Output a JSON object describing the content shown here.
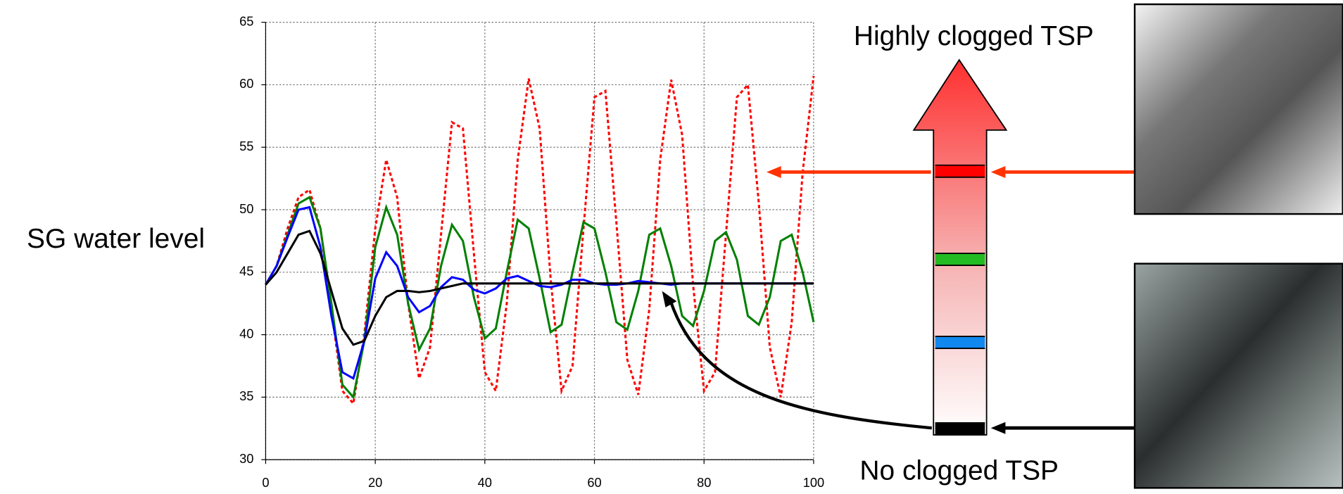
{
  "chart_data": {
    "type": "line",
    "ylabel": "SG water level",
    "annotations": [
      "Highly clogged TSP",
      "No clogged TSP"
    ],
    "x": [
      0,
      2,
      4,
      6,
      8,
      10,
      12,
      14,
      16,
      18,
      20,
      22,
      24,
      26,
      28,
      30,
      32,
      34,
      36,
      38,
      40,
      42,
      44,
      46,
      48,
      50,
      52,
      54,
      56,
      58,
      60,
      62,
      64,
      66,
      68,
      70,
      72,
      74,
      76,
      78,
      80,
      82,
      84,
      86,
      88,
      90,
      92,
      94,
      96,
      98,
      100
    ],
    "series": [
      {
        "color": "#ff0000",
        "dash": true,
        "values": [
          44,
          45.5,
          48.5,
          51,
          51.6,
          48.5,
          42,
          35.5,
          34.5,
          40,
          48.5,
          54,
          51,
          42.5,
          36.5,
          39,
          48,
          57,
          56.5,
          46.5,
          37,
          35.5,
          42.5,
          54,
          60.5,
          56.5,
          44.5,
          35.5,
          37.5,
          48.5,
          59,
          59.5,
          49,
          38,
          35.2,
          42,
          54,
          60.4,
          56,
          44,
          35.5,
          37,
          48,
          59,
          60,
          50.5,
          39,
          35,
          41,
          53,
          60.7
        ]
      },
      {
        "color": "#008000",
        "dash": false,
        "values": [
          44,
          45.5,
          48,
          50.5,
          51,
          48.5,
          42.5,
          36,
          35,
          39.5,
          47,
          50.2,
          48,
          42.5,
          38.8,
          40.5,
          45.5,
          48.8,
          47.5,
          43,
          39.7,
          40.5,
          45,
          49.2,
          48.5,
          44.5,
          40.2,
          40.8,
          45,
          49,
          48.5,
          45,
          41,
          40.4,
          43.5,
          48,
          48.5,
          45.5,
          41.5,
          40.7,
          43.5,
          47.5,
          48.2,
          46,
          41.5,
          40.8,
          43,
          47.5,
          48,
          45,
          41
        ]
      },
      {
        "color": "#0000ff",
        "dash": false,
        "values": [
          44,
          45.5,
          47.8,
          50,
          50.2,
          47,
          41.5,
          37,
          36.5,
          39.5,
          44.5,
          46.6,
          45.5,
          43,
          41.8,
          42.3,
          43.8,
          44.6,
          44.4,
          43.6,
          43.3,
          43.7,
          44.5,
          44.7,
          44.3,
          43.9,
          43.8,
          44,
          44.4,
          44.4,
          44.1,
          44,
          44,
          44.1,
          44.3,
          44.2,
          44.1,
          44,
          44.1,
          44.1,
          44.1,
          44.1,
          44.1,
          44.1,
          44.1,
          44.1,
          44.1,
          44.1,
          44.1,
          44.1,
          44.1
        ]
      },
      {
        "color": "#000000",
        "dash": false,
        "values": [
          44,
          45,
          46.5,
          48,
          48.3,
          46.5,
          43.5,
          40.5,
          39.2,
          39.5,
          41.5,
          43,
          43.5,
          43.5,
          43.4,
          43.5,
          43.7,
          43.9,
          44.1,
          44.1,
          44.1,
          44.1,
          44.1,
          44.1,
          44.1,
          44.1,
          44.1,
          44.1,
          44.1,
          44.1,
          44.1,
          44.1,
          44.1,
          44.1,
          44.1,
          44.1,
          44.1,
          44.1,
          44.1,
          44.1,
          44.1,
          44.1,
          44.1,
          44.1,
          44.1,
          44.1,
          44.1,
          44.1,
          44.1,
          44.1,
          44.1
        ]
      }
    ],
    "xlim": [
      0,
      100
    ],
    "xticks": [
      0,
      20,
      40,
      60,
      80,
      100
    ],
    "ylim": [
      30,
      65
    ],
    "yticks": [
      30,
      35,
      40,
      45,
      50,
      55,
      60,
      65
    ],
    "grid": true
  }
}
